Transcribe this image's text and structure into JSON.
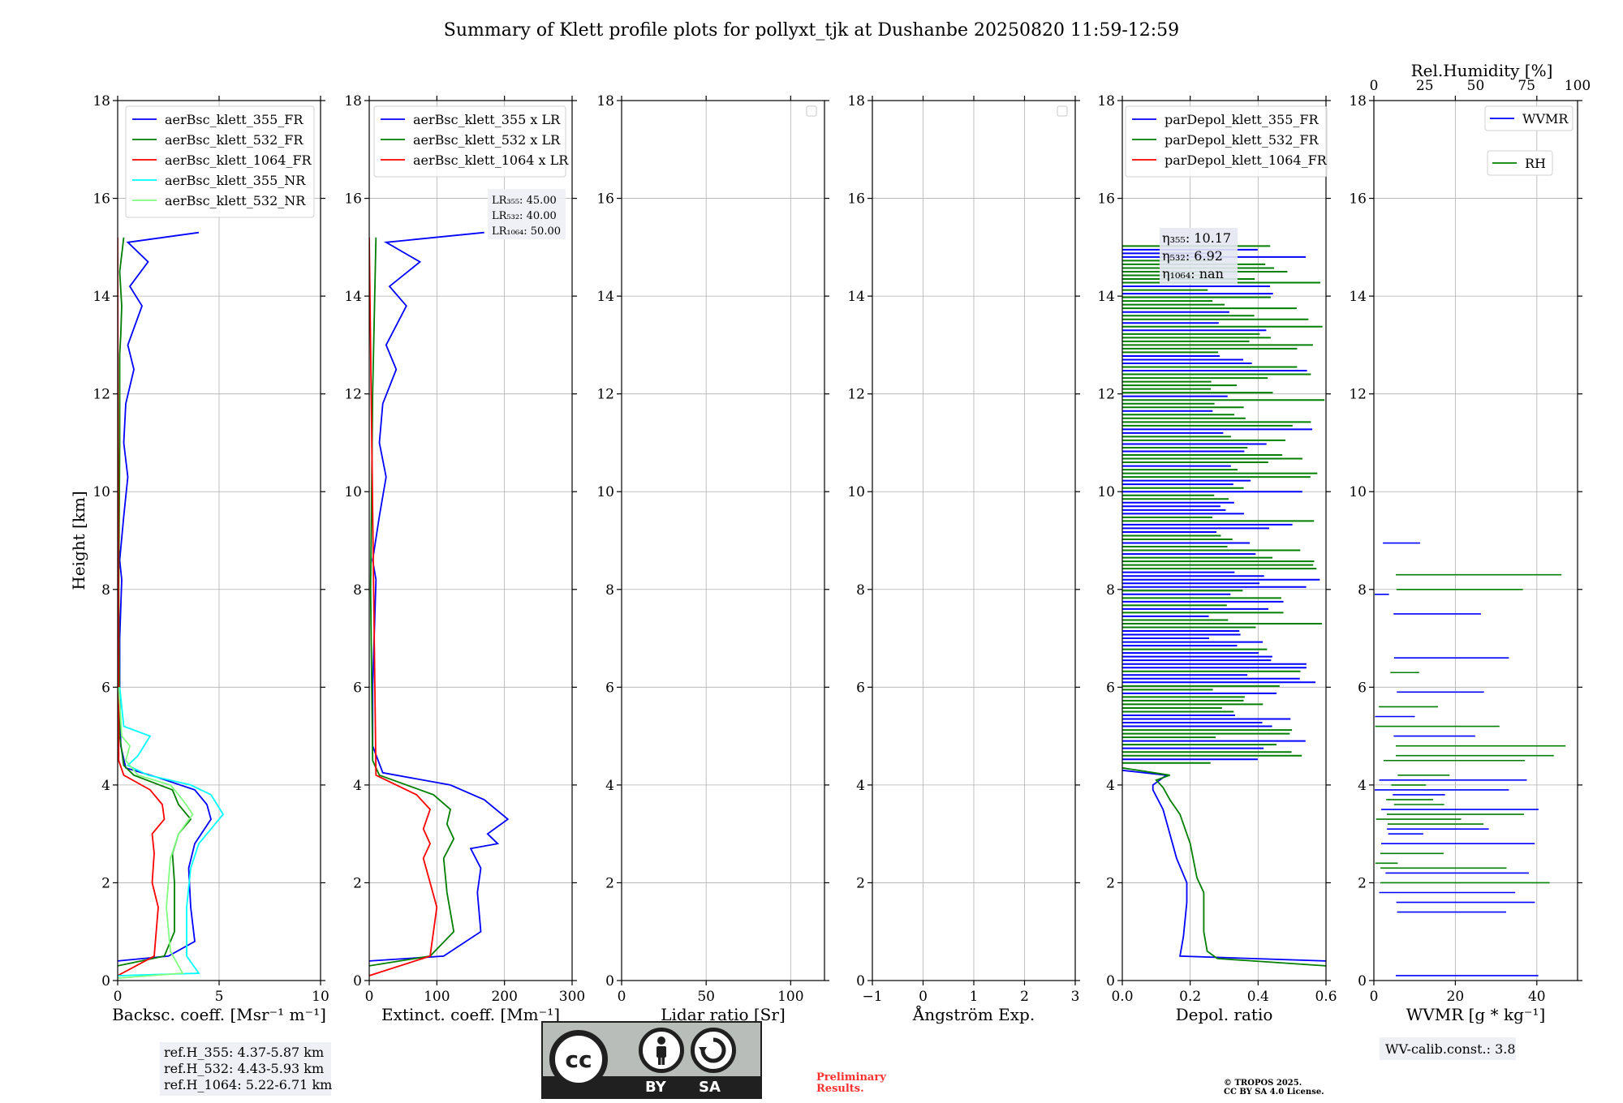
{
  "title": "Summary of Klett profile plots for pollyxt_tjk at Dushanbe 20250820 11:59-12:59",
  "colors": {
    "blue": "#0000ff",
    "green": "#007f00",
    "red": "#ff0000",
    "cyan": "#00ffff",
    "lightgreen": "#80ff80",
    "darkgreen": "#006400"
  },
  "chart_data": [
    {
      "type": "line",
      "xlabel": "Backsc. coeff. [Msr⁻¹ m⁻¹]",
      "ylabel": "Height [km]",
      "xlim": [
        0,
        10
      ],
      "ylim": [
        0,
        18
      ],
      "xticks": [
        "0",
        "5",
        "10"
      ],
      "xtick_values": [
        0,
        5,
        10
      ],
      "yticks": [
        "0",
        "2",
        "4",
        "6",
        "8",
        "10",
        "12",
        "14",
        "16",
        "18"
      ],
      "grid": true,
      "legend_position": "top-right",
      "series": [
        {
          "name": "aerBsc_klett_355_FR",
          "color": "#0000ff",
          "x": [
            0.0,
            2.5,
            3.8,
            3.6,
            3.5,
            3.8,
            4.6,
            4.4,
            3.8,
            2.0,
            0.4,
            0.15,
            0.1,
            0.1,
            0.2,
            0.1,
            0.3,
            0.5,
            0.3,
            0.4,
            0.8,
            0.5,
            1.2,
            0.6,
            1.5,
            0.5,
            4.0
          ],
          "y": [
            0.4,
            0.5,
            0.8,
            1.5,
            2.3,
            2.8,
            3.3,
            3.6,
            3.9,
            4.15,
            4.35,
            4.8,
            6.0,
            7.0,
            8.2,
            8.6,
            9.5,
            10.3,
            11.0,
            11.8,
            12.5,
            13.0,
            13.8,
            14.2,
            14.7,
            15.1,
            15.3
          ]
        },
        {
          "name": "aerBsc_klett_532_FR",
          "color": "#007f00",
          "x": [
            0.0,
            2.3,
            2.8,
            2.8,
            2.7,
            3.0,
            3.6,
            3.0,
            2.7,
            0.8,
            0.3,
            0.1,
            0.05,
            0.1,
            0.1,
            0.15,
            0.2,
            0.1,
            0.3
          ],
          "y": [
            0.3,
            0.5,
            1.0,
            2.0,
            2.6,
            3.0,
            3.3,
            3.6,
            3.9,
            4.2,
            4.4,
            5.0,
            8.0,
            11.0,
            12.8,
            13.2,
            13.8,
            14.5,
            15.2
          ]
        },
        {
          "name": "aerBsc_klett_1064_FR",
          "color": "#ff0000",
          "x": [
            0.0,
            1.8,
            2.0,
            1.7,
            1.8,
            1.7,
            2.3,
            2.2,
            1.6,
            0.3,
            0.05,
            0.0
          ],
          "y": [
            0.1,
            0.5,
            1.5,
            2.0,
            2.6,
            3.0,
            3.3,
            3.6,
            3.9,
            4.2,
            4.5,
            15.2
          ]
        },
        {
          "name": "aerBsc_klett_355_NR",
          "color": "#00ffff",
          "x": [
            0.0,
            4.0,
            3.4,
            3.4,
            3.6,
            4.0,
            5.2,
            4.6,
            3.6,
            1.5,
            0.5,
            1.0,
            1.6,
            0.3,
            0.1
          ],
          "y": [
            0.1,
            0.15,
            0.5,
            1.5,
            2.3,
            2.8,
            3.4,
            3.8,
            4.0,
            4.2,
            4.4,
            4.6,
            5.0,
            5.2,
            6.0
          ]
        },
        {
          "name": "aerBsc_klett_532_NR",
          "color": "#80ff80",
          "x": [
            0.0,
            3.2,
            2.6,
            2.4,
            2.6,
            3.0,
            3.7,
            3.2,
            2.6,
            1.0,
            0.4,
            0.6,
            0.2,
            0.05
          ],
          "y": [
            0.05,
            0.15,
            0.6,
            1.5,
            2.5,
            3.0,
            3.4,
            3.7,
            4.0,
            4.2,
            4.5,
            4.8,
            5.0,
            6.0
          ]
        }
      ]
    },
    {
      "type": "line",
      "xlabel": "Extinct. coeff. [Mm⁻¹]",
      "xlim": [
        0,
        300
      ],
      "ylim": [
        0,
        18
      ],
      "xticks": [
        "0",
        "100",
        "200",
        "300"
      ],
      "xtick_values": [
        0,
        100,
        200,
        300
      ],
      "yticks": [
        "0",
        "2",
        "4",
        "6",
        "8",
        "10",
        "12",
        "14",
        "16",
        "18"
      ],
      "grid": true,
      "legend_position": "top-right",
      "annotation": [
        "LR₃₅₅: 45.00",
        "LR₅₃₂: 40.00",
        "LR₁₀₆₄: 50.00"
      ],
      "series": [
        {
          "name": "aerBsc_klett_355 x LR",
          "color": "#0000ff",
          "x": [
            0,
            110,
            165,
            160,
            165,
            150,
            190,
            175,
            205,
            170,
            120,
            20,
            5,
            5,
            10,
            5,
            15,
            25,
            15,
            20,
            40,
            25,
            55,
            30,
            75,
            25,
            170
          ],
          "y": [
            0.4,
            0.5,
            1.0,
            1.8,
            2.3,
            2.7,
            2.8,
            3.0,
            3.3,
            3.7,
            4.0,
            4.25,
            4.8,
            6.0,
            8.2,
            8.6,
            9.5,
            10.3,
            11.0,
            11.8,
            12.5,
            13.0,
            13.8,
            14.2,
            14.7,
            15.1,
            15.3
          ]
        },
        {
          "name": "aerBsc_klett_532 x LR",
          "color": "#007f00",
          "x": [
            0,
            90,
            125,
            115,
            110,
            125,
            115,
            120,
            95,
            15,
            5,
            2,
            5,
            10
          ],
          "y": [
            0.3,
            0.5,
            1.0,
            1.8,
            2.5,
            2.9,
            3.2,
            3.5,
            3.8,
            4.2,
            4.5,
            8.0,
            12.0,
            15.2
          ]
        },
        {
          "name": "aerBsc_klett_1064 x LR",
          "color": "#ff0000",
          "x": [
            0,
            90,
            100,
            90,
            80,
            90,
            80,
            90,
            70,
            10,
            0
          ],
          "y": [
            0.1,
            0.5,
            1.5,
            2.0,
            2.5,
            2.8,
            3.1,
            3.5,
            3.8,
            4.2,
            15.2
          ]
        }
      ]
    },
    {
      "type": "line",
      "xlabel": "Lidar ratio [Sr]",
      "xlim": [
        0,
        120
      ],
      "ylim": [
        0,
        18
      ],
      "xticks": [
        "0",
        "50",
        "100"
      ],
      "xtick_values": [
        0,
        50,
        100
      ],
      "yticks": [
        "0",
        "2",
        "4",
        "6",
        "8",
        "10",
        "12",
        "14",
        "16",
        "18"
      ],
      "grid": true,
      "legend_position": "top-right",
      "series": []
    },
    {
      "type": "line",
      "xlabel": "Ångström Exp.",
      "xlim": [
        -1,
        3
      ],
      "ylim": [
        0,
        18
      ],
      "xticks": [
        "−1",
        "0",
        "1",
        "2",
        "3"
      ],
      "xtick_values": [
        -1,
        0,
        1,
        2,
        3
      ],
      "yticks": [
        "0",
        "2",
        "4",
        "6",
        "8",
        "10",
        "12",
        "14",
        "16",
        "18"
      ],
      "grid": true,
      "legend_position": "top-right",
      "series": []
    },
    {
      "type": "line",
      "xlabel": "Depol. ratio",
      "xlim": [
        0,
        0.6
      ],
      "ylim": [
        0,
        18
      ],
      "xticks": [
        "0.0",
        "0.2",
        "0.4",
        "0.6"
      ],
      "xtick_values": [
        0,
        0.2,
        0.4,
        0.6
      ],
      "yticks": [
        "0",
        "2",
        "4",
        "6",
        "8",
        "10",
        "12",
        "14",
        "16",
        "18"
      ],
      "grid": true,
      "legend_position": "top-left",
      "annotation": [
        "η₃₅₅: 10.17",
        "η₅₃₂: 6.92",
        "η₁₀₆₄: nan"
      ],
      "series": [
        {
          "name": "parDepol_klett_355_FR",
          "color": "#0000ff",
          "x": [
            0.6,
            0.17,
            0.18,
            0.19,
            0.19,
            0.16,
            0.14,
            0.12,
            0.09,
            0.09,
            0.13,
            0.0
          ],
          "y": [
            0.4,
            0.5,
            0.9,
            1.6,
            2.0,
            2.5,
            3.0,
            3.5,
            3.9,
            4.0,
            4.2,
            4.3
          ]
        },
        {
          "name": "parDepol_klett_532_FR",
          "color": "#007f00",
          "x": [
            0.6,
            0.28,
            0.25,
            0.24,
            0.24,
            0.22,
            0.2,
            0.17,
            0.14,
            0.12,
            0.1,
            0.14,
            0.0
          ],
          "y": [
            0.3,
            0.45,
            0.6,
            1.0,
            1.8,
            2.1,
            2.8,
            3.4,
            3.7,
            3.95,
            4.1,
            4.2,
            4.35
          ]
        },
        {
          "name": "parDepol_klett_1064_FR",
          "color": "#ff0000",
          "x": [],
          "y": []
        }
      ]
    },
    {
      "type": "line",
      "xlabel": "WVMR [g * kg⁻¹]",
      "top_xlabel": "Rel.Humidity [%]",
      "xlim": [
        0,
        50
      ],
      "top_xlim": [
        0,
        100
      ],
      "ylim": [
        0,
        18
      ],
      "xticks": [
        "0",
        "20",
        "40"
      ],
      "xtick_values": [
        0,
        20,
        40
      ],
      "top_xticks": [
        "0",
        "25",
        "50",
        "75",
        "100"
      ],
      "top_xtick_values": [
        0,
        25,
        50,
        75,
        100
      ],
      "yticks": [
        "0",
        "2",
        "4",
        "6",
        "8",
        "10",
        "12",
        "14",
        "16",
        "18"
      ],
      "grid": true,
      "legend_position": "top-right",
      "series": [
        {
          "name": "WVMR",
          "color": "#0000ff"
        },
        {
          "name": "RH",
          "color": "#007f00"
        }
      ]
    }
  ],
  "notes": {
    "ref_heights": [
      "ref.H_355: 4.37-5.87 km",
      "ref.H_532: 4.43-5.93 km",
      "ref.H_1064: 5.22-6.71 km"
    ],
    "wv_calib": "WV-calib.const.: 3.8",
    "preliminary": [
      "Preliminary",
      "Results."
    ],
    "copyright": [
      "© TROPOS 2025.",
      "CC BY SA 4.0 License."
    ]
  },
  "license_badge": {
    "main": "cc",
    "by": "BY",
    "sa": "SA",
    "icons": [
      "person-icon",
      "share-alike-icon"
    ]
  }
}
